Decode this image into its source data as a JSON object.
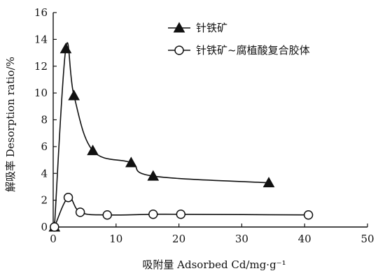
{
  "chart_data": {
    "type": "line",
    "title": "",
    "xlabel": "吸附量 Adsorbed Cd/mg·g⁻¹",
    "ylabel": "解吸率 Desorption ratio/%",
    "xlim": [
      0,
      50
    ],
    "ylim": [
      0,
      16
    ],
    "x_ticks": [
      "0",
      "10",
      "20",
      "30",
      "40",
      "50"
    ],
    "y_ticks": [
      "0",
      "2",
      "4",
      "6",
      "8",
      "10",
      "12",
      "14",
      "16"
    ],
    "grid": false,
    "legend_position": "top-right",
    "series": [
      {
        "name": "针铁矿",
        "marker": "filled-triangle",
        "color": "#111111",
        "x": [
          0.2,
          2.0,
          3.3,
          6.3,
          12.4,
          15.9,
          34.3
        ],
        "y": [
          0,
          13.3,
          9.8,
          5.7,
          4.8,
          3.8,
          3.3
        ]
      },
      {
        "name": "针铁矿~腐植酸复合胶体",
        "marker": "open-circle",
        "color": "#111111",
        "x": [
          0.2,
          2.4,
          4.3,
          8.6,
          15.9,
          20.3,
          40.6
        ],
        "y": [
          0,
          2.2,
          1.1,
          0.9,
          0.95,
          0.95,
          0.9
        ]
      }
    ]
  }
}
